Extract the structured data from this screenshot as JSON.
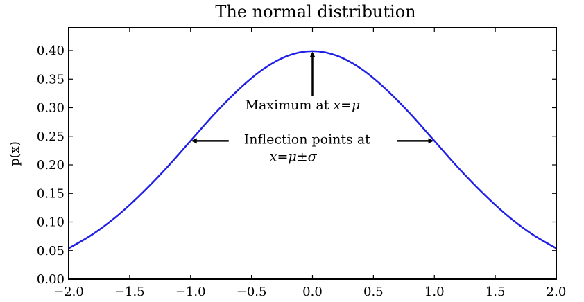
{
  "chart_data": {
    "type": "line",
    "title": "The normal distribution",
    "xlabel": "",
    "ylabel": "p(x)",
    "xlim": [
      -2.0,
      2.0
    ],
    "ylim": [
      0.0,
      0.44
    ],
    "x_ticks": [
      -2.0,
      -1.5,
      -1.0,
      -0.5,
      0.0,
      0.5,
      1.0,
      1.5,
      2.0
    ],
    "x_tick_labels": [
      "−2.0",
      "−1.5",
      "−1.0",
      "−0.5",
      "0.0",
      "0.5",
      "1.0",
      "1.5",
      "2.0"
    ],
    "y_ticks": [
      0.0,
      0.05,
      0.1,
      0.15,
      0.2,
      0.25,
      0.3,
      0.35,
      0.4
    ],
    "y_tick_labels": [
      "0.00",
      "0.05",
      "0.10",
      "0.15",
      "0.20",
      "0.25",
      "0.30",
      "0.35",
      "0.40"
    ],
    "grid": false,
    "series": [
      {
        "color": "#1f1fe6",
        "x": [
          -2.0,
          -1.8,
          -1.6,
          -1.4,
          -1.2,
          -1.0,
          -0.8,
          -0.6,
          -0.4,
          -0.2,
          0.0,
          0.2,
          0.4,
          0.6,
          0.8,
          1.0,
          1.2,
          1.4,
          1.6,
          1.8,
          2.0
        ],
        "y": [
          0.054,
          0.079,
          0.111,
          0.15,
          0.194,
          0.242,
          0.29,
          0.333,
          0.368,
          0.391,
          0.399,
          0.391,
          0.368,
          0.333,
          0.29,
          0.242,
          0.194,
          0.15,
          0.111,
          0.079,
          0.054
        ]
      }
    ],
    "annotations": [
      {
        "text_prefix": "Maximum at ",
        "math": "x=μ",
        "point": [
          0.0,
          0.399
        ]
      },
      {
        "text": "Inflection points at",
        "math": "x=μ±σ",
        "points": [
          [
            -1.0,
            0.242
          ],
          [
            1.0,
            0.242
          ]
        ]
      }
    ]
  }
}
